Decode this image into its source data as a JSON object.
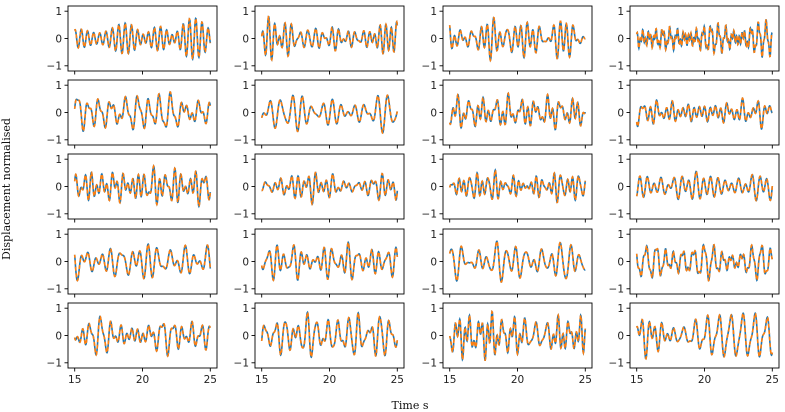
{
  "chart_data": {
    "type": "line",
    "layout": "5x4 grid of line plots",
    "xlabel": "Time s",
    "ylabel": "Displacement normalised",
    "xlim": [
      15,
      25
    ],
    "ylim": [
      -1,
      1
    ],
    "x_ticks": [
      "15",
      "20",
      "25"
    ],
    "y_ticks": [
      "-1",
      "0",
      "1"
    ],
    "grid": false,
    "legend": "none",
    "series_style": [
      {
        "color": "#1f77b4",
        "linestyle": "solid"
      },
      {
        "color": "#ff7f0e",
        "linestyle": "dashed"
      }
    ],
    "panels": [
      {
        "row": 1,
        "col": 1,
        "amplitude": 0.75,
        "dominant_period": 0.35
      },
      {
        "row": 1,
        "col": 2,
        "amplitude": 0.8,
        "dominant_period": 0.3
      },
      {
        "row": 1,
        "col": 3,
        "amplitude": 0.8,
        "dominant_period": 0.35
      },
      {
        "row": 1,
        "col": 4,
        "amplitude": 0.7,
        "dominant_period": 0.35
      },
      {
        "row": 2,
        "col": 1,
        "amplitude": 0.75,
        "dominant_period": 0.5
      },
      {
        "row": 2,
        "col": 2,
        "amplitude": 0.75,
        "dominant_period": 0.5
      },
      {
        "row": 2,
        "col": 3,
        "amplitude": 0.7,
        "dominant_period": 0.5
      },
      {
        "row": 2,
        "col": 4,
        "amplitude": 0.6,
        "dominant_period": 0.5
      },
      {
        "row": 3,
        "col": 1,
        "amplitude": 0.75,
        "dominant_period": 0.45
      },
      {
        "row": 3,
        "col": 2,
        "amplitude": 0.65,
        "dominant_period": 0.45
      },
      {
        "row": 3,
        "col": 3,
        "amplitude": 0.6,
        "dominant_period": 0.45
      },
      {
        "row": 3,
        "col": 4,
        "amplitude": 0.55,
        "dominant_period": 0.5
      },
      {
        "row": 4,
        "col": 1,
        "amplitude": 0.7,
        "dominant_period": 0.5
      },
      {
        "row": 4,
        "col": 2,
        "amplitude": 0.7,
        "dominant_period": 0.5
      },
      {
        "row": 4,
        "col": 3,
        "amplitude": 0.75,
        "dominant_period": 0.55
      },
      {
        "row": 4,
        "col": 4,
        "amplitude": 0.7,
        "dominant_period": 0.55
      },
      {
        "row": 5,
        "col": 1,
        "amplitude": 0.75,
        "dominant_period": 0.55
      },
      {
        "row": 5,
        "col": 2,
        "amplitude": 0.85,
        "dominant_period": 0.55
      },
      {
        "row": 5,
        "col": 3,
        "amplitude": 0.9,
        "dominant_period": 0.55
      },
      {
        "row": 5,
        "col": 4,
        "amplitude": 0.85,
        "dominant_period": 0.55
      }
    ]
  }
}
